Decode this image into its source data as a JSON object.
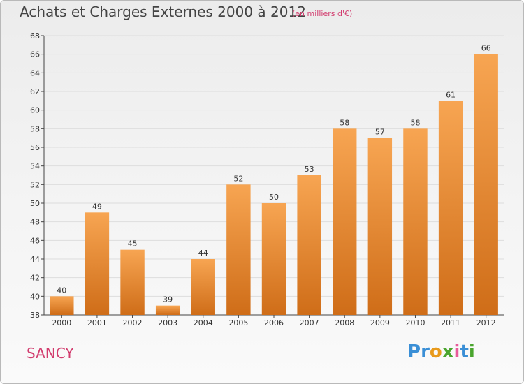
{
  "title": "Achats et Charges Externes 2000 à 2012",
  "subtitle": "(en milliers d'€)",
  "commune": "SANCY",
  "logo": {
    "text": "Proxiti",
    "letter_colors": [
      "#3a8fd6",
      "#3a8fd6",
      "#e89a1c",
      "#4aa52e",
      "#e85a9a",
      "#3a8fd6",
      "#4aa52e"
    ]
  },
  "colors": {
    "bar_light": "#f7a552",
    "bar_dark": "#cf6d18",
    "axis": "#444444",
    "grid": "#dddddd",
    "label": "#333333"
  },
  "chart_data": {
    "type": "bar",
    "categories": [
      "2000",
      "2001",
      "2002",
      "2003",
      "2004",
      "2005",
      "2006",
      "2007",
      "2008",
      "2009",
      "2010",
      "2011",
      "2012"
    ],
    "values": [
      40,
      49,
      45,
      39,
      44,
      52,
      50,
      53,
      58,
      57,
      58,
      61,
      66
    ],
    "ylim": [
      38,
      68
    ],
    "yticks": [
      38,
      40,
      42,
      44,
      46,
      48,
      50,
      52,
      54,
      56,
      58,
      60,
      62,
      64,
      66,
      68
    ],
    "grid": "horizontal"
  }
}
